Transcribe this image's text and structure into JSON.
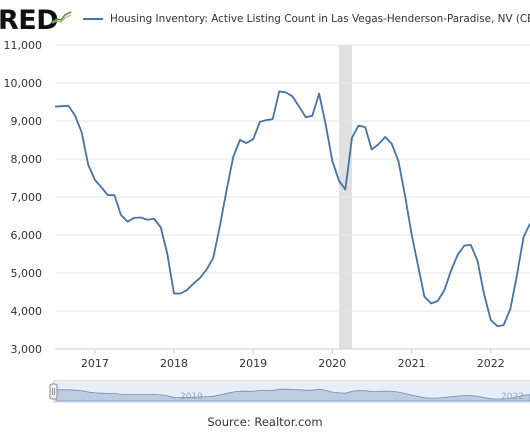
{
  "logo": {
    "text": "RED"
  },
  "legend": {
    "label": "Housing Inventory: Active Listing Count in Las Vegas-Henderson-Paradise, NV (CBSA)"
  },
  "source": "Source: Realtor.com",
  "navigator": {
    "labels": [
      "2019",
      "2022"
    ]
  },
  "colors": {
    "line": "#4572a7",
    "recession": "#e0e0e0",
    "grid": "#e6e6e6",
    "navigator": "#a9bfd9"
  },
  "chart_data": {
    "type": "line",
    "title": "",
    "xlabel": "",
    "ylabel": "",
    "ylim": [
      3000,
      11000
    ],
    "yticks": [
      3000,
      4000,
      5000,
      6000,
      7000,
      8000,
      9000,
      10000,
      11000
    ],
    "ytick_labels": [
      "3,000",
      "4,000",
      "5,000",
      "6,000",
      "7,000",
      "8,000",
      "9,000",
      "10,000",
      "11,000"
    ],
    "xlim": [
      "2016-07-01",
      "2022-07-01"
    ],
    "xticks": [
      "2017-01-01",
      "2018-01-01",
      "2019-01-01",
      "2020-01-01",
      "2021-01-01",
      "2022-01-01"
    ],
    "xtick_labels": [
      "2017",
      "2018",
      "2019",
      "2020",
      "2021",
      "2022"
    ],
    "grid": "horizontal",
    "shaded_regions": [
      {
        "start": "2020-02-01",
        "end": "2020-04-01"
      }
    ],
    "series": [
      {
        "name": "Housing Inventory: Active Listing Count in Las Vegas-Henderson-Paradise, NV (CBSA)",
        "x": [
          "2016-07",
          "2016-08",
          "2016-09",
          "2016-10",
          "2016-11",
          "2016-12",
          "2017-01",
          "2017-02",
          "2017-03",
          "2017-04",
          "2017-05",
          "2017-06",
          "2017-07",
          "2017-08",
          "2017-09",
          "2017-10",
          "2017-11",
          "2017-12",
          "2018-01",
          "2018-02",
          "2018-03",
          "2018-04",
          "2018-05",
          "2018-06",
          "2018-07",
          "2018-08",
          "2018-09",
          "2018-10",
          "2018-11",
          "2018-12",
          "2019-01",
          "2019-02",
          "2019-03",
          "2019-04",
          "2019-05",
          "2019-06",
          "2019-07",
          "2019-08",
          "2019-09",
          "2019-10",
          "2019-11",
          "2019-12",
          "2020-01",
          "2020-02",
          "2020-03",
          "2020-04",
          "2020-05",
          "2020-06",
          "2020-07",
          "2020-08",
          "2020-09",
          "2020-10",
          "2020-11",
          "2020-12",
          "2021-01",
          "2021-02",
          "2021-03",
          "2021-04",
          "2021-05",
          "2021-06",
          "2021-07",
          "2021-08",
          "2021-09",
          "2021-10",
          "2021-11",
          "2021-12",
          "2022-01",
          "2022-02",
          "2022-03",
          "2022-04",
          "2022-05",
          "2022-06",
          "2022-07"
        ],
        "y": [
          9380,
          9390,
          9400,
          9150,
          8700,
          7850,
          7450,
          7250,
          7050,
          7050,
          6530,
          6350,
          6450,
          6460,
          6400,
          6430,
          6200,
          5500,
          4460,
          4460,
          4550,
          4720,
          4870,
          5100,
          5400,
          6250,
          7200,
          8050,
          8500,
          8420,
          8520,
          8980,
          9020,
          9050,
          9780,
          9750,
          9650,
          9380,
          9100,
          9140,
          9720,
          8920,
          7950,
          7430,
          7200,
          8560,
          8880,
          8840,
          8250,
          8390,
          8580,
          8400,
          7950,
          7050,
          6020,
          5150,
          4380,
          4200,
          4260,
          4550,
          5050,
          5480,
          5720,
          5740,
          5320,
          4450,
          3760,
          3600,
          3630,
          4050,
          4920,
          5940,
          6300
        ]
      }
    ]
  }
}
